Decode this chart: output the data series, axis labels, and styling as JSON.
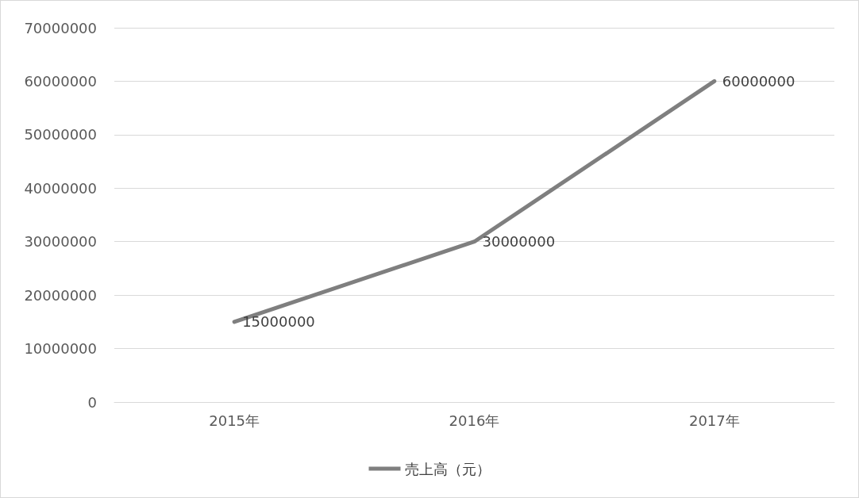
{
  "chart_data": {
    "type": "line",
    "categories": [
      "2015年",
      "2016年",
      "2017年"
    ],
    "series": [
      {
        "name": "売上高（元）",
        "color": "#7f7f7f",
        "values": [
          15000000,
          30000000,
          60000000
        ]
      }
    ],
    "ylim": [
      0,
      70000000
    ],
    "yticks": [
      0,
      10000000,
      20000000,
      30000000,
      40000000,
      50000000,
      60000000,
      70000000
    ],
    "grid": "y",
    "legend": "bottom",
    "marker": "none",
    "line_style": "solid",
    "data_labels": true
  }
}
